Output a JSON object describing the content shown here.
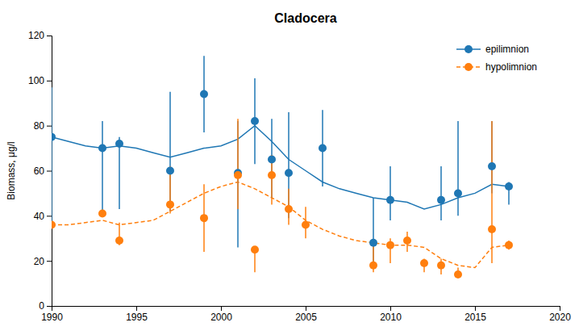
{
  "chart_data": {
    "type": "line",
    "title": "Cladocera",
    "y_label": "Biomass, μg/l",
    "xlim": [
      1990,
      2020
    ],
    "ylim": [
      0,
      120
    ],
    "xticks": [
      1990,
      1995,
      2000,
      2005,
      2010,
      2015,
      2020
    ],
    "yticks": [
      0,
      20,
      40,
      60,
      80,
      100,
      120
    ],
    "grid": false,
    "legend": "upper right",
    "series": [
      {
        "name": "epilimnion",
        "line_style": "solid",
        "marker": "circle",
        "x": [
          1990,
          1991,
          1992,
          1993,
          1994,
          1995,
          1996,
          1997,
          1998,
          1999,
          2000,
          2001,
          2002,
          2003,
          2004,
          2005,
          2006,
          2007,
          2008,
          2009,
          2010,
          2011,
          2012,
          2013,
          2014,
          2015,
          2016,
          2017
        ],
        "values": [
          75,
          73,
          71,
          70,
          71,
          70,
          68,
          66,
          68,
          70,
          71,
          74,
          80,
          73,
          65,
          60,
          55,
          52,
          50,
          48,
          47,
          46,
          43,
          45,
          48,
          50,
          54,
          53
        ],
        "points_x": [
          1990,
          1993,
          1994,
          1997,
          1999,
          2001,
          2002,
          2003,
          2004,
          2006,
          2009,
          2010,
          2013,
          2014,
          2016,
          2017
        ],
        "points_values": [
          75,
          70,
          72,
          60,
          94,
          59,
          82,
          65,
          59,
          70,
          28,
          47,
          47,
          50,
          62,
          53
        ],
        "error_low": [
          39,
          28,
          29,
          18,
          17,
          33,
          19,
          17,
          20,
          17,
          10,
          9,
          9,
          10,
          12,
          8
        ],
        "error_high": [
          22,
          12,
          3,
          35,
          17,
          23,
          19,
          18,
          27,
          17,
          20,
          15,
          15,
          32,
          20,
          2
        ]
      },
      {
        "name": "hypolimnion",
        "line_style": "dashed",
        "marker": "circle",
        "x": [
          1990,
          1991,
          1992,
          1993,
          1994,
          1995,
          1996,
          1997,
          1998,
          1999,
          2000,
          2001,
          2002,
          2003,
          2004,
          2005,
          2006,
          2007,
          2008,
          2009,
          2010,
          2011,
          2012,
          2013,
          2014,
          2015,
          2016,
          2017
        ],
        "values": [
          36,
          36,
          37,
          38,
          36,
          37,
          38,
          42,
          46,
          50,
          53,
          55,
          52,
          48,
          44,
          38,
          34,
          31,
          29,
          28,
          27,
          27,
          26,
          21,
          18,
          17,
          26,
          27
        ],
        "points_x": [
          1990,
          1993,
          1994,
          1997,
          1999,
          2001,
          2002,
          2003,
          2004,
          2005,
          2009,
          2010,
          2011,
          2012,
          2013,
          2014,
          2016,
          2017
        ],
        "points_values": [
          36,
          41,
          29,
          45,
          39,
          58,
          25,
          58,
          43,
          36,
          18,
          27,
          29,
          19,
          18,
          14,
          34,
          27
        ],
        "error_low": [
          0,
          0,
          2,
          4,
          15,
          15,
          10,
          13,
          7,
          6,
          3,
          8,
          5,
          4,
          4,
          1,
          15,
          2
        ],
        "error_high": [
          0,
          0,
          8,
          17,
          15,
          25,
          0,
          9,
          9,
          8,
          10,
          3,
          4,
          2,
          3,
          3,
          48,
          2
        ]
      }
    ]
  }
}
